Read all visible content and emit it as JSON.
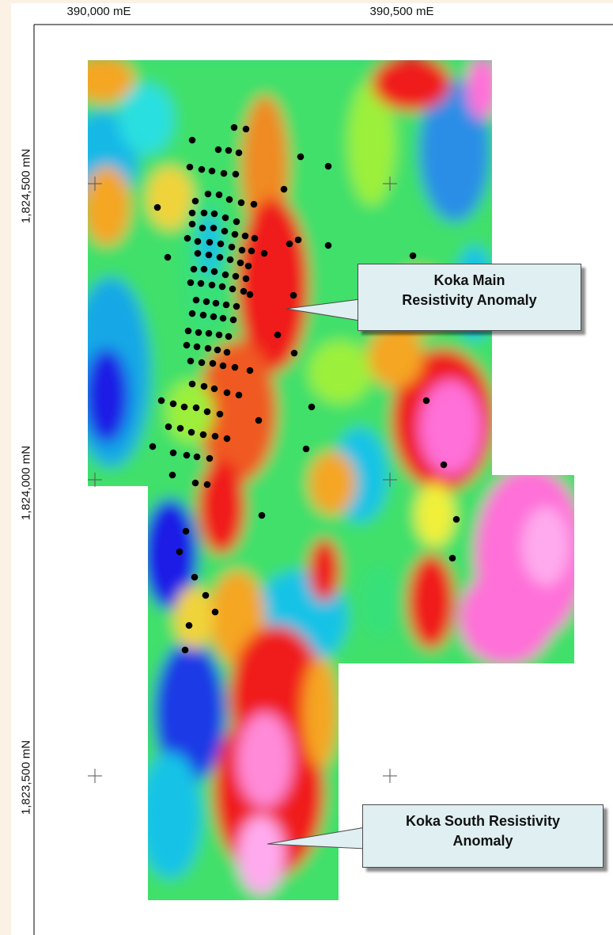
{
  "map": {
    "axes": {
      "easting_labels": [
        "390,000 mE",
        "390,500 mE"
      ],
      "northing_labels": [
        "1,824,500 mN",
        "1,824,000 mN",
        "1,823,500 mN"
      ]
    },
    "callouts": {
      "main": {
        "line1": "Koka Main",
        "line2": "Resistivity Anomaly"
      },
      "south": {
        "line1": "Koka South Resistivity",
        "line2": "Anomaly"
      }
    },
    "legend_colors": {
      "very_low": "#1a1ae6",
      "low": "#19c3e6",
      "mid_low": "#39e07a",
      "mid": "#9cf03a",
      "mid_high": "#f0f03a",
      "high": "#f5a623",
      "very_high": "#f01e1e",
      "extreme": "#ff6fd8",
      "extreme_max": "#ffaaee"
    },
    "drillhole_symbol": "black-dot"
  }
}
